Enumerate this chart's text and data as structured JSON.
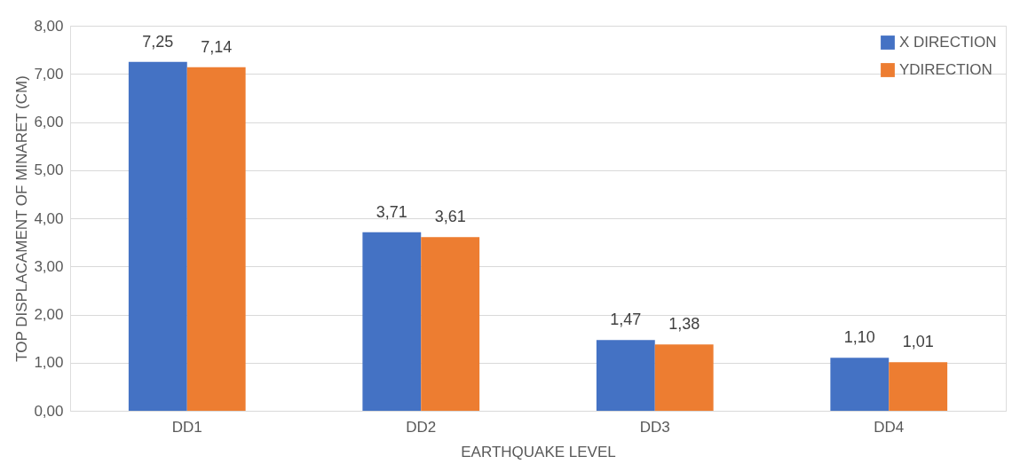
{
  "chart_data": {
    "type": "bar",
    "xlabel": "EARTHQUAKE LEVEL",
    "ylabel": "TOP DISPLACAMENT OF MINARET (CM)",
    "categories": [
      "DD1",
      "DD2",
      "DD3",
      "DD4"
    ],
    "series": [
      {
        "name": "X DIRECTION",
        "color": "#4472c4",
        "values": [
          7.25,
          3.71,
          1.47,
          1.1
        ],
        "value_labels": [
          "7,25",
          "3,71",
          "1,47",
          "1,10"
        ]
      },
      {
        "name": "YDIRECTION",
        "color": "#ed7d31",
        "values": [
          7.14,
          3.61,
          1.38,
          1.01
        ],
        "value_labels": [
          "7,14",
          "3,61",
          "1,38",
          "1,01"
        ]
      }
    ],
    "ylim": [
      0,
      8
    ],
    "yticks": [
      {
        "value": 0,
        "label": "0,00"
      },
      {
        "value": 1,
        "label": "1,00"
      },
      {
        "value": 2,
        "label": "2,00"
      },
      {
        "value": 3,
        "label": "3,00"
      },
      {
        "value": 4,
        "label": "4,00"
      },
      {
        "value": 5,
        "label": "5,00"
      },
      {
        "value": 6,
        "label": "6,00"
      },
      {
        "value": 7,
        "label": "7,00"
      },
      {
        "value": 8,
        "label": "8,00"
      }
    ],
    "grid": "y",
    "legend": "top right"
  }
}
